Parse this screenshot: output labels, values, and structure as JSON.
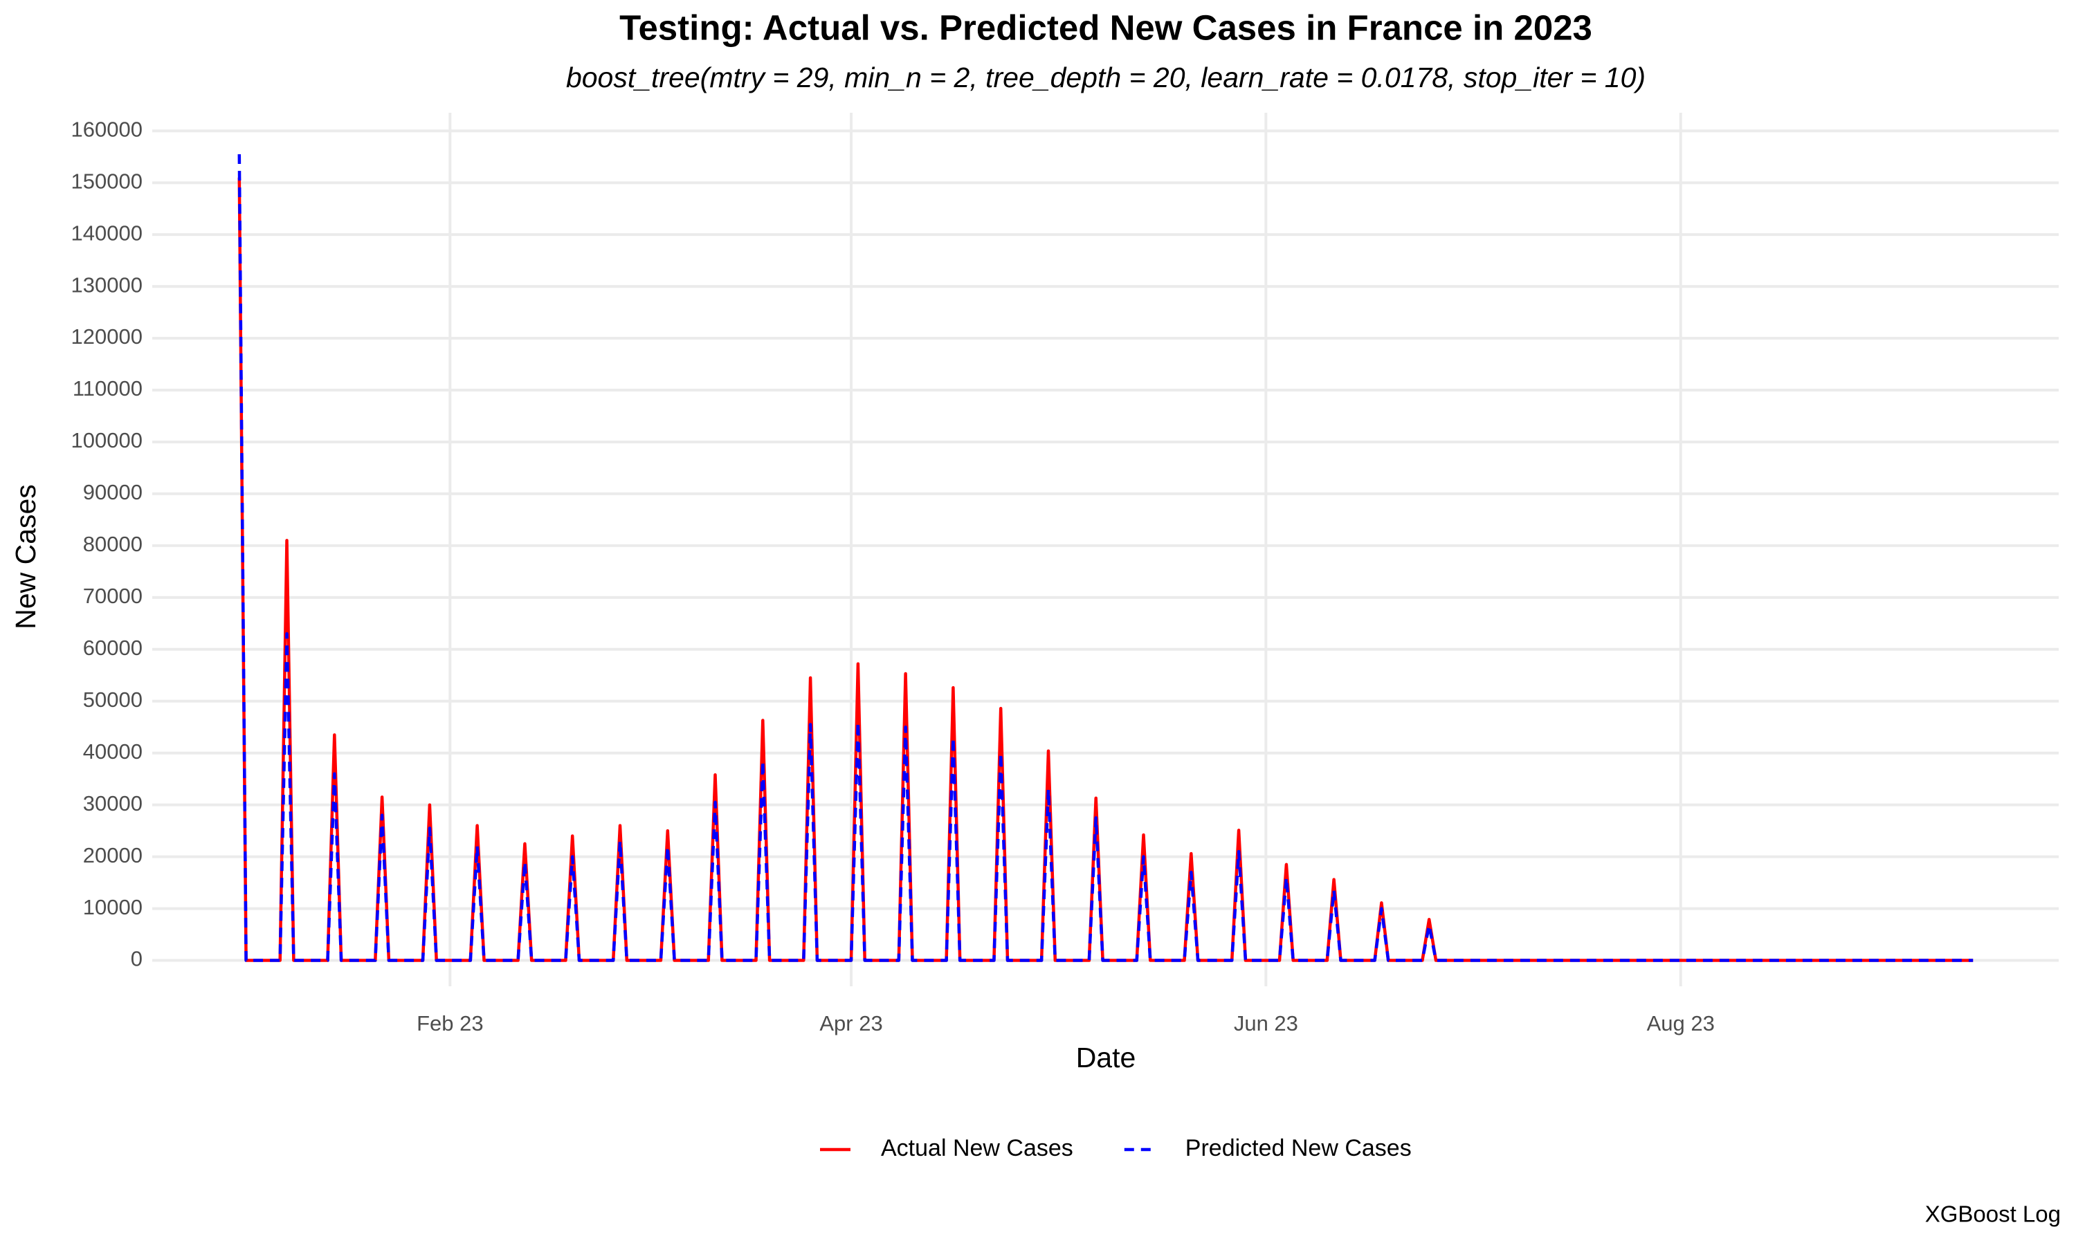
{
  "chart_data": {
    "type": "line",
    "title": "Testing: Actual vs. Predicted New Cases in France in 2023",
    "subtitle": "boost_tree(mtry = 29, min_n = 2, tree_depth = 20, learn_rate = 0.0178, stop_iter = 10)",
    "x_label": "Date",
    "y_label": "New Cases",
    "caption": "XGBoost Log",
    "x": [
      1,
      2,
      7,
      8,
      9,
      14,
      15,
      16,
      21,
      22,
      23,
      28,
      29,
      30,
      35,
      36,
      37,
      42,
      43,
      44,
      49,
      50,
      51,
      56,
      57,
      58,
      63,
      64,
      65,
      70,
      71,
      72,
      77,
      78,
      79,
      84,
      85,
      86,
      91,
      92,
      93,
      98,
      99,
      100,
      105,
      106,
      107,
      112,
      113,
      114,
      119,
      120,
      121,
      126,
      127,
      128,
      133,
      134,
      135,
      140,
      141,
      142,
      147,
      148,
      149,
      154,
      155,
      156,
      161,
      162,
      163,
      168,
      169,
      170,
      175,
      176,
      177,
      256
    ],
    "series": [
      {
        "name": "Actual New Cases",
        "color": "#ff0000",
        "dash": false,
        "values": [
          151000,
          0,
          0,
          81000,
          0,
          0,
          43500,
          0,
          0,
          31500,
          0,
          0,
          30000,
          0,
          0,
          26000,
          0,
          0,
          22500,
          0,
          0,
          24000,
          0,
          0,
          26000,
          0,
          0,
          25000,
          0,
          0,
          35800,
          0,
          0,
          46300,
          0,
          0,
          54500,
          0,
          0,
          57200,
          0,
          0,
          55300,
          0,
          0,
          52600,
          0,
          0,
          48600,
          0,
          0,
          40400,
          0,
          0,
          31300,
          0,
          0,
          24200,
          0,
          0,
          20600,
          0,
          0,
          25100,
          0,
          0,
          18500,
          0,
          0,
          15600,
          0,
          0,
          11100,
          0,
          0,
          7900,
          0,
          0
        ]
      },
      {
        "name": "Predicted New Cases",
        "color": "#0000ff",
        "dash": true,
        "values": [
          155500,
          0,
          0,
          63000,
          0,
          0,
          36000,
          0,
          0,
          28000,
          0,
          0,
          25500,
          0,
          0,
          22000,
          0,
          0,
          19000,
          0,
          0,
          20000,
          0,
          0,
          23000,
          0,
          0,
          22000,
          0,
          0,
          30500,
          0,
          0,
          38500,
          0,
          0,
          45500,
          0,
          0,
          46000,
          0,
          0,
          45000,
          0,
          0,
          43000,
          0,
          0,
          40000,
          0,
          0,
          33000,
          0,
          0,
          27500,
          0,
          0,
          20000,
          0,
          0,
          17000,
          0,
          0,
          21000,
          0,
          0,
          16000,
          0,
          0,
          13500,
          0,
          0,
          10000,
          0,
          0,
          6800,
          0,
          0
        ]
      }
    ],
    "xlim": [
      -11.8,
      268.6
    ],
    "xticks": [
      {
        "value": 32,
        "label": "Feb 23"
      },
      {
        "value": 91,
        "label": "Apr 23"
      },
      {
        "value": 152,
        "label": "Jun 23"
      },
      {
        "value": 213,
        "label": "Aug 23"
      }
    ],
    "ylim": [
      -5000,
      163500
    ],
    "yticks": [
      0,
      10000,
      20000,
      30000,
      40000,
      50000,
      60000,
      70000,
      80000,
      90000,
      100000,
      110000,
      120000,
      130000,
      140000,
      150000,
      160000
    ],
    "grid": true,
    "legend": "bottom"
  }
}
